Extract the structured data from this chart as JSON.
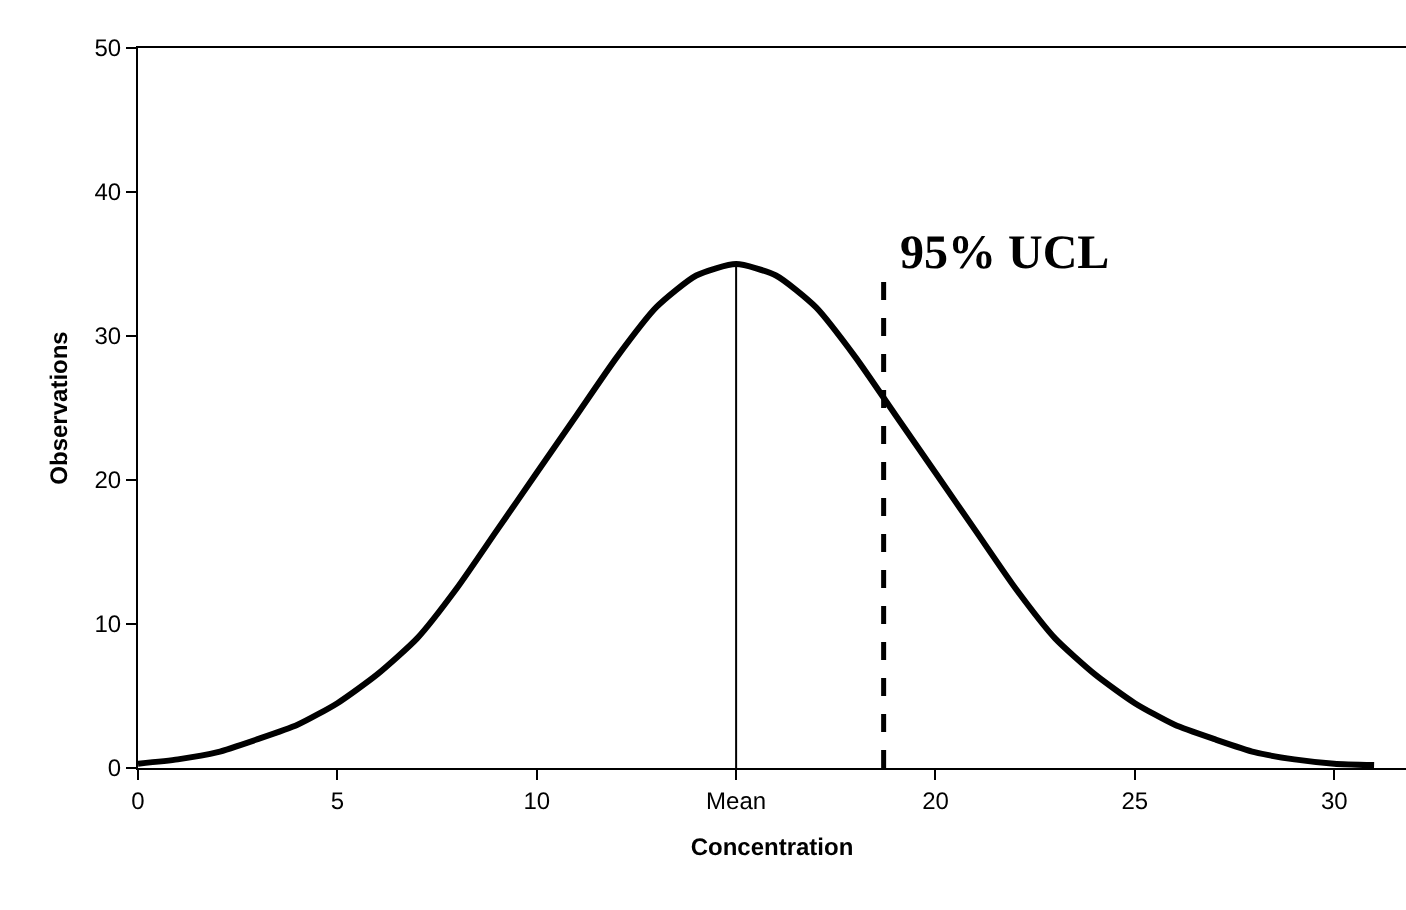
{
  "chart_data": {
    "type": "line",
    "xlabel": "Concentration",
    "ylabel": "Observations",
    "x": [
      0,
      1,
      2,
      3,
      4,
      5,
      6,
      7,
      8,
      9,
      10,
      11,
      12,
      13,
      14,
      15,
      16,
      17,
      18,
      19,
      20,
      21,
      22,
      23,
      24,
      25,
      26,
      27,
      28,
      29,
      30,
      31
    ],
    "series": [
      {
        "color": "#000000",
        "values": [
          0.3,
          0.6,
          1.1,
          2.0,
          3.0,
          4.5,
          6.5,
          9,
          12.5,
          16.5,
          20.5,
          24.5,
          28.5,
          32,
          34.2,
          35,
          34.2,
          32,
          28.5,
          24.5,
          20.5,
          16.5,
          12.5,
          9,
          6.5,
          4.5,
          3,
          2,
          1.1,
          0.6,
          0.3,
          0.2
        ]
      }
    ],
    "xlim": [
      0,
      31.8
    ],
    "ylim": [
      0,
      50
    ],
    "xticks": [
      0,
      5,
      10,
      {
        "value": 15,
        "label": "Mean"
      },
      20,
      25,
      30
    ],
    "yticks": [
      0,
      10,
      20,
      30,
      40,
      50
    ],
    "ref_lines": [
      {
        "axis": "x",
        "value": 15,
        "line_style": "solid"
      },
      {
        "axis": "x",
        "value": 18.7,
        "label": "95% UCL",
        "line_style": "dashed"
      }
    ],
    "grid": false,
    "marker": "none",
    "line_style": "solid"
  }
}
